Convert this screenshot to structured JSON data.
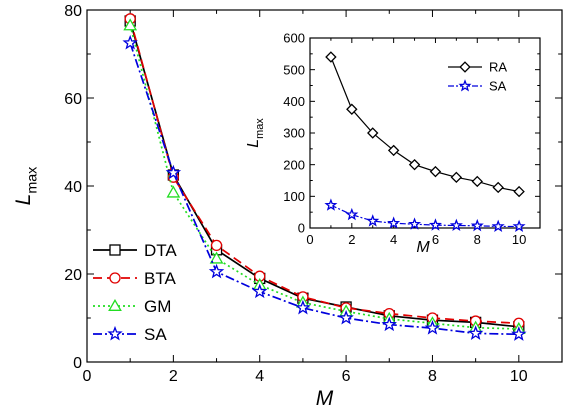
{
  "chart_data": [
    {
      "type": "line",
      "panel": "main",
      "xlabel": "M",
      "ylabel": {
        "main": "L",
        "sub": "max"
      },
      "xlim": [
        0,
        11
      ],
      "ylim": [
        0,
        80
      ],
      "xticks": [
        0,
        2,
        4,
        6,
        8,
        10
      ],
      "yticks": [
        0,
        20,
        40,
        60,
        80
      ],
      "x": [
        1,
        2,
        3,
        4,
        5,
        6,
        7,
        8,
        9,
        10
      ],
      "legend_position": "bottom-left",
      "series": [
        {
          "name": "DTA",
          "color": "#000000",
          "marker": "square",
          "dash": "",
          "values": [
            77.5,
            42.5,
            25.5,
            19.0,
            14.5,
            12.5,
            10.5,
            9.5,
            9.0,
            8.0
          ]
        },
        {
          "name": "BTA",
          "color": "#e00000",
          "marker": "circle",
          "dash": "9,5",
          "values": [
            78.0,
            42.0,
            26.5,
            19.5,
            14.8,
            12.3,
            11.0,
            10.0,
            9.3,
            8.8
          ]
        },
        {
          "name": "GM",
          "color": "#22dd22",
          "marker": "triangle",
          "dash": "2,3",
          "values": [
            76.5,
            38.5,
            23.5,
            17.5,
            13.5,
            11.5,
            9.8,
            8.8,
            7.8,
            7.5
          ]
        },
        {
          "name": "SA",
          "color": "#0000dd",
          "marker": "star",
          "dash": "9,3,2,3",
          "values": [
            72.5,
            43.0,
            20.5,
            16.0,
            12.3,
            10.0,
            8.5,
            7.7,
            6.5,
            6.3
          ]
        }
      ]
    },
    {
      "type": "line",
      "panel": "inset",
      "xlabel": "M",
      "ylabel": {
        "main": "L",
        "sub": "max"
      },
      "xlim": [
        0,
        11
      ],
      "ylim": [
        0,
        600
      ],
      "xticks": [
        0,
        2,
        4,
        6,
        8,
        10
      ],
      "yticks": [
        0,
        100,
        200,
        300,
        400,
        500,
        600
      ],
      "x": [
        1,
        2,
        3,
        4,
        5,
        6,
        7,
        8,
        9,
        10
      ],
      "legend_position": "top-right",
      "series": [
        {
          "name": "RA",
          "color": "#000000",
          "marker": "diamond",
          "dash": "",
          "values": [
            540,
            375,
            300,
            245,
            200,
            178,
            160,
            147,
            128,
            115
          ]
        },
        {
          "name": "SA",
          "color": "#0000dd",
          "marker": "star",
          "dash": "6,2,2,2",
          "values": [
            72,
            42,
            22,
            15,
            12,
            9,
            8,
            7,
            5,
            5
          ]
        }
      ]
    }
  ]
}
